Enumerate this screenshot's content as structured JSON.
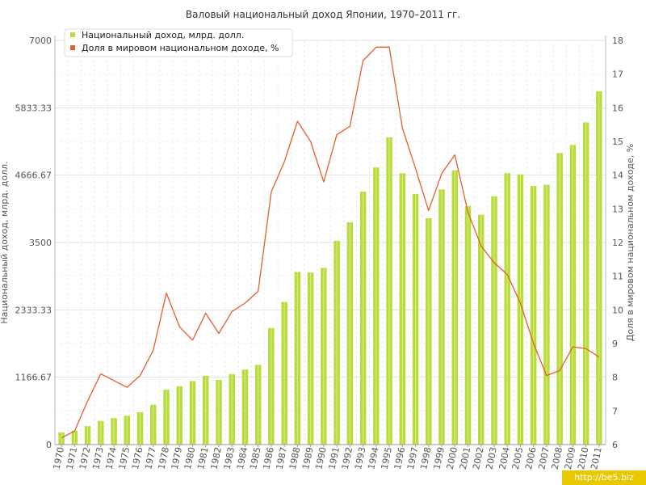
{
  "chart_data": {
    "type": "bar",
    "title": "Валовый национальный доход Японии, 1970–2011 гг.",
    "ylabel": "Национальный доход, млрд. долл.",
    "y2label": "Доля в мировом национальном доходе, %",
    "ylim": [
      0,
      7000
    ],
    "y2lim": [
      6,
      18
    ],
    "yticks": [
      "0",
      "1166.67",
      "2333.33",
      "3500",
      "4666.67",
      "5833.33",
      "7000"
    ],
    "y2ticks": [
      "6",
      "7",
      "8",
      "9",
      "10",
      "11",
      "12",
      "13",
      "14",
      "15",
      "16",
      "17",
      "18"
    ],
    "categories": [
      "1970",
      "1971",
      "1972",
      "1973",
      "1974",
      "1975",
      "1976",
      "1977",
      "1978",
      "1979",
      "1980",
      "1981",
      "1982",
      "1983",
      "1984",
      "1985",
      "1986",
      "1987",
      "1988",
      "1989",
      "1990",
      "1991",
      "1992",
      "1993",
      "1994",
      "1995",
      "1996",
      "1997",
      "1998",
      "1999",
      "2000",
      "2001",
      "2002",
      "2003",
      "2004",
      "2005",
      "2006",
      "2007",
      "2008",
      "2009",
      "2010",
      "2011"
    ],
    "series": [
      {
        "name": "Национальный доход, млрд. долл.",
        "type": "bar",
        "axis": "left",
        "color": "#b8dc3c",
        "values": [
          210,
          240,
          320,
          410,
          460,
          500,
          560,
          690,
          950,
          1010,
          1100,
          1190,
          1120,
          1220,
          1300,
          1380,
          2020,
          2470,
          2990,
          2980,
          3060,
          3530,
          3850,
          4380,
          4800,
          5320,
          4700,
          4340,
          3920,
          4420,
          4750,
          4130,
          3980,
          4300,
          4700,
          4680,
          4480,
          4500,
          5050,
          5190,
          5580,
          6120
        ]
      },
      {
        "name": "Доля в мировом национальном доходе, %",
        "type": "line",
        "axis": "right",
        "color": "#e06030",
        "values": [
          6.2,
          6.4,
          7.3,
          8.1,
          7.9,
          7.7,
          8.05,
          8.8,
          10.5,
          9.5,
          9.1,
          9.9,
          9.3,
          9.95,
          10.2,
          10.55,
          13.5,
          14.4,
          15.6,
          15.0,
          13.8,
          15.2,
          15.45,
          17.4,
          17.8,
          17.8,
          15.4,
          14.2,
          12.95,
          14.05,
          14.6,
          12.9,
          11.9,
          11.4,
          11.05,
          10.2,
          9.0,
          8.05,
          8.2,
          8.9,
          8.85,
          8.6
        ]
      }
    ],
    "legend": "top-left",
    "grid": true
  },
  "watermark": "http://be5.biz"
}
